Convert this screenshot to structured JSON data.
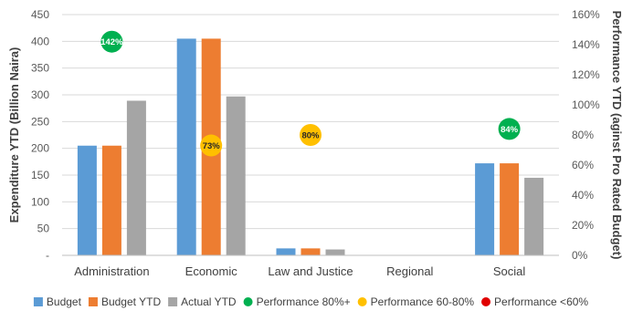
{
  "chart_data": {
    "type": "bar",
    "categories": [
      "Administration",
      "Economic",
      "Law and Justice",
      "Regional",
      "Social"
    ],
    "series": [
      {
        "name": "Budget",
        "color": "#5b9bd5",
        "values": [
          205,
          405,
          13,
          0,
          172
        ]
      },
      {
        "name": "Budget YTD",
        "color": "#ed7d31",
        "values": [
          205,
          405,
          13,
          0,
          172
        ]
      },
      {
        "name": "Actual YTD",
        "color": "#a5a5a5",
        "values": [
          289,
          297,
          11,
          0,
          145
        ]
      }
    ],
    "performance_points": [
      {
        "category": "Administration",
        "value": 142,
        "label": "142%",
        "color": "#00b050"
      },
      {
        "category": "Economic",
        "value": 73,
        "label": "73%",
        "color": "#ffc000"
      },
      {
        "category": "Law and Justice",
        "value": 80,
        "label": "80%",
        "color": "#ffc000"
      },
      {
        "category": "Social",
        "value": 84,
        "label": "84%",
        "color": "#00b050"
      }
    ],
    "ylabel": "Expenditure YTD (Billion Naira)",
    "y2label": "Performance YTD (aginst Pro Rated Budget)",
    "ylim": [
      0,
      450
    ],
    "y2lim": [
      0,
      160
    ],
    "yticks": [
      "-",
      "50",
      "100",
      "150",
      "200",
      "250",
      "300",
      "350",
      "400",
      "450"
    ],
    "y2ticks": [
      "0%",
      "20%",
      "40%",
      "60%",
      "80%",
      "100%",
      "120%",
      "140%",
      "160%"
    ],
    "grid": true,
    "legend": [
      {
        "label": "Budget",
        "shape": "square",
        "color": "#5b9bd5"
      },
      {
        "label": "Budget YTD",
        "shape": "square",
        "color": "#ed7d31"
      },
      {
        "label": "Actual YTD",
        "shape": "square",
        "color": "#a5a5a5"
      },
      {
        "label": "Performance 80%+",
        "shape": "circle",
        "color": "#00b050"
      },
      {
        "label": "Performance 60-80%",
        "shape": "circle",
        "color": "#ffc000"
      },
      {
        "label": "Performance <60%",
        "shape": "circle",
        "color": "#e00000"
      }
    ],
    "legend_position": "bottom"
  }
}
